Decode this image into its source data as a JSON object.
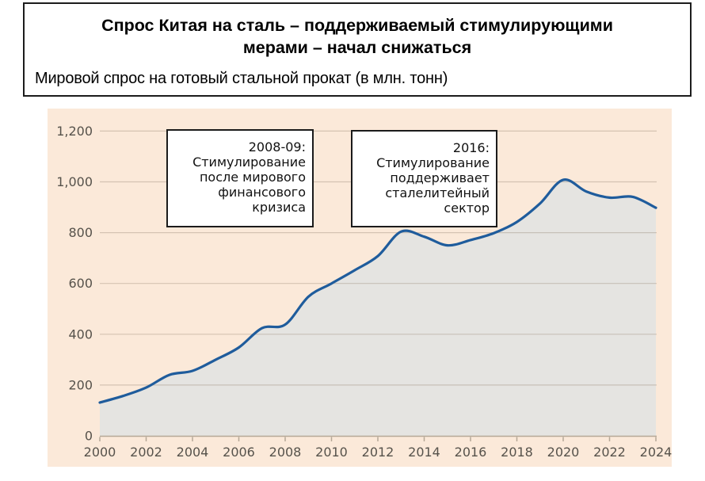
{
  "header": {
    "title": "Спрос Китая на сталь – поддерживаемый стимулирующими мерами – начал снижаться",
    "subtitle": "Мировой спрос на готовый стальной прокат (в млн. тонн)"
  },
  "annotations": [
    {
      "lines": [
        "2008-09:",
        "Стимулирование",
        "после мирового",
        "финансового",
        "кризиса"
      ]
    },
    {
      "lines": [
        "2016:",
        "Стимулирование",
        "поддерживает",
        "сталелитейный",
        "сектор"
      ]
    }
  ],
  "chart_data": {
    "type": "area",
    "title": "Спрос Китая на сталь – поддерживаемый стимулирующими мерами – начал снижаться",
    "subtitle": "Мировой спрос на готовый стальной прокат (в млн. тонн)",
    "unit": "млн. тонн",
    "x": [
      2000,
      2001,
      2002,
      2003,
      2004,
      2005,
      2006,
      2007,
      2008,
      2009,
      2010,
      2011,
      2012,
      2013,
      2014,
      2015,
      2016,
      2017,
      2018,
      2019,
      2020,
      2021,
      2022,
      2023,
      2024
    ],
    "values": [
      131,
      157,
      190,
      240,
      256,
      300,
      348,
      424,
      438,
      548,
      600,
      652,
      708,
      804,
      784,
      750,
      771,
      798,
      842,
      915,
      1008,
      962,
      938,
      941,
      898
    ],
    "xlim": [
      2000,
      2024
    ],
    "ylim": [
      0,
      1200
    ],
    "x_tick_labels": [
      "2000",
      "2002",
      "2004",
      "2006",
      "2008",
      "2010",
      "2012",
      "2014",
      "2016",
      "2018",
      "2020",
      "2022",
      "2024"
    ],
    "y_ticks": [
      0,
      200,
      400,
      600,
      800,
      1000,
      1200
    ],
    "y_tick_labels": [
      "0",
      "200",
      "400",
      "600",
      "800",
      "1,000",
      "1,200"
    ],
    "grid": true,
    "legend": false,
    "annotations": [
      "2008-09: Стимулирование после мирового финансового кризиса",
      "2016: Стимулирование поддерживает сталелитейный сектор"
    ]
  },
  "colors": {
    "panel_bg": "#fbe9d9",
    "line": "#1f5c9c",
    "area_fill": "#e5e4e1",
    "gridline": "rgba(125,110,90,0.30)",
    "axis": "#b5a897",
    "tick_label": "#56524b",
    "annotation_border": "#1b1b1b"
  }
}
